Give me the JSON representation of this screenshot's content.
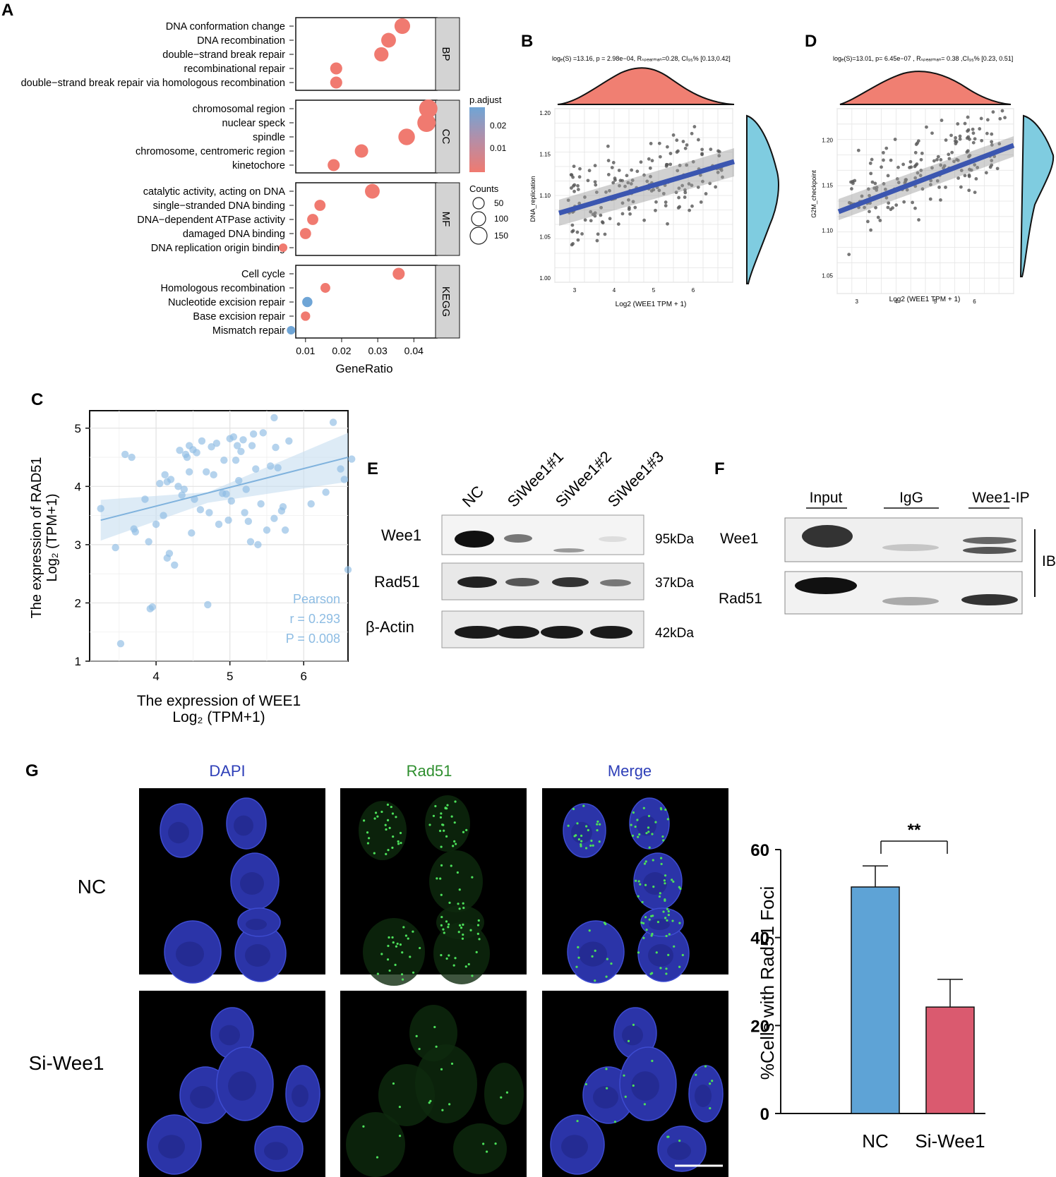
{
  "panel_labels": {
    "A": "A",
    "B": "B",
    "C": "C",
    "D": "D",
    "E": "E",
    "F": "F",
    "G": "G"
  },
  "colors": {
    "red": "#F07A70",
    "blue": "#6FA5D6",
    "facet_bg": "#D3D3D3",
    "scatter_line": "#3B56B0",
    "marginal_x": "#F07F72",
    "marginal_y": "#7FCCE0",
    "panel_c": "#8DBCE3",
    "bar_nc": "#5EA3D6",
    "bar_si": "#DA5A6F",
    "dapi": "#2E3FB8",
    "rad51": "#2F8F2F"
  },
  "panel_a": {
    "facets": [
      {
        "id": "BP",
        "terms": [
          {
            "label": "DNA conformation change",
            "x": 0.0368,
            "count": 120,
            "padj": "low"
          },
          {
            "label": "DNA recombination",
            "x": 0.033,
            "count": 110,
            "padj": "low"
          },
          {
            "label": "double−strand break repair",
            "x": 0.031,
            "count": 105,
            "padj": "low"
          },
          {
            "label": "recombinational repair",
            "x": 0.0185,
            "count": 80,
            "padj": "low"
          },
          {
            "label": "double−strand break repair via homologous recombination",
            "x": 0.0185,
            "count": 80,
            "padj": "low"
          }
        ]
      },
      {
        "id": "CC",
        "terms": [
          {
            "label": "chromosomal region",
            "x": 0.044,
            "count": 150,
            "padj": "low"
          },
          {
            "label": "nuclear speck",
            "x": 0.0435,
            "count": 150,
            "padj": "low"
          },
          {
            "label": "spindle",
            "x": 0.038,
            "count": 130,
            "padj": "low"
          },
          {
            "label": "chromosome, centromeric region",
            "x": 0.0255,
            "count": 95,
            "padj": "low"
          },
          {
            "label": "kinetochore",
            "x": 0.0178,
            "count": 80,
            "padj": "low"
          }
        ]
      },
      {
        "id": "MF",
        "terms": [
          {
            "label": "catalytic activity, acting on DNA",
            "x": 0.0285,
            "count": 110,
            "padj": "low"
          },
          {
            "label": "single−stranded DNA binding",
            "x": 0.014,
            "count": 70,
            "padj": "low"
          },
          {
            "label": "DNA−dependent ATPase activity",
            "x": 0.012,
            "count": 70,
            "padj": "low"
          },
          {
            "label": "damaged DNA binding",
            "x": 0.01,
            "count": 70,
            "padj": "low"
          },
          {
            "label": "DNA replication origin binding",
            "x": 0.0038,
            "count": 40,
            "padj": "low"
          }
        ]
      },
      {
        "id": "KEGG",
        "terms": [
          {
            "label": "Cell cycle",
            "x": 0.0358,
            "count": 80,
            "padj": "low"
          },
          {
            "label": "Homologous recombination",
            "x": 0.0155,
            "count": 55,
            "padj": "low"
          },
          {
            "label": "Nucleotide excision repair",
            "x": 0.0105,
            "count": 60,
            "padj": "high"
          },
          {
            "label": "Base excision repair",
            "x": 0.01,
            "count": 50,
            "padj": "low"
          },
          {
            "label": "Mismatch repair",
            "x": 0.006,
            "count": 40,
            "padj": "high"
          }
        ]
      }
    ],
    "x_ticks": [
      "0.01",
      "0.02",
      "0.03",
      "0.04"
    ],
    "xlabel": "GeneRatio",
    "legend": {
      "padj_title": "p.adjust",
      "padj_ticks": [
        "0.02",
        "0.01"
      ],
      "counts_title": "Counts",
      "counts": [
        "50",
        "100",
        "150"
      ]
    }
  },
  "panel_b": {
    "stats": "logₑ(S) =13.16, p = 2.98e−04, Rₛₚₑₐᵣₘₐₙ=0.28, CI₉₅% [0.13,0.42]",
    "ylabel": "DNA_replication",
    "xlabel": "Log2 (WEE1 TPM + 1)",
    "x_ticks": [
      "3",
      "4",
      "5",
      "6"
    ],
    "y_ticks": [
      "1.00",
      "1.05",
      "1.10",
      "1.15",
      "1.20"
    ]
  },
  "panel_d": {
    "stats": "logₑ(S)=13.01, p= 6.45e−07 , Rₛₚₑₐᵣₘₐₙ= 0.38 ,CI₉₅% [0.23, 0.51]",
    "ylabel": "G2M_checkpoint",
    "xlabel": "Log2 (WEE1 TPM + 1)",
    "x_ticks": [
      "3",
      "4",
      "5",
      "6"
    ],
    "y_ticks": [
      "1.05",
      "1.10",
      "1.15",
      "1.20"
    ]
  },
  "panel_c": {
    "ylabel1": "The expression of RAD51",
    "ylabel2": "Log₂ (TPM+1)",
    "xlabel1": "The expression of WEE1",
    "xlabel2": "Log₂ (TPM+1)",
    "annot": [
      "Pearson",
      "r = 0.293",
      "P = 0.008"
    ],
    "x_ticks": [
      "4",
      "5",
      "6"
    ],
    "y_ticks": [
      "1",
      "2",
      "3",
      "4",
      "5"
    ]
  },
  "panel_e": {
    "lanes": [
      "NC",
      "SiWee1#1",
      "SiWee1#2",
      "SiWee1#3"
    ],
    "rows": [
      {
        "label": "Wee1",
        "kda": "95kDa"
      },
      {
        "label": "Rad51",
        "kda": "37kDa"
      },
      {
        "label": "β-Actin",
        "kda": "42kDa"
      }
    ]
  },
  "panel_f": {
    "lanes": [
      "Input",
      "IgG",
      "Wee1-IP"
    ],
    "rows": [
      "Wee1",
      "Rad51"
    ],
    "ib": "IB"
  },
  "panel_g": {
    "col_headers": [
      "DAPI",
      "Rad51",
      "Merge"
    ],
    "row_labels": [
      "NC",
      "Si-Wee1"
    ]
  },
  "chart_data": [
    {
      "type": "bar",
      "categories": [
        "NC",
        "Si-Wee1"
      ],
      "values": [
        51.5,
        24.2
      ],
      "errors": [
        4.8,
        6.3
      ],
      "ylabel": "%Cells with Rad51 Foci",
      "ylim": [
        0,
        60
      ],
      "y_ticks": [
        "0",
        "20",
        "40",
        "60"
      ],
      "significance": "**"
    },
    {
      "type": "scatter",
      "title": "",
      "xlabel": "The expression of WEE1 Log2 (TPM+1)",
      "ylabel": "The expression of RAD51 Log2 (TPM+1)",
      "xlim": [
        3.1,
        6.6
      ],
      "ylim": [
        1,
        5.3
      ],
      "fit": {
        "x": [
          3.25,
          6.6
        ],
        "y": [
          3.42,
          4.5
        ]
      },
      "points": [
        [
          3.25,
          3.62
        ],
        [
          3.45,
          2.95
        ],
        [
          3.58,
          4.55
        ],
        [
          3.67,
          4.5
        ],
        [
          3.52,
          1.3
        ],
        [
          3.7,
          3.27
        ],
        [
          3.72,
          3.22
        ],
        [
          3.85,
          3.78
        ],
        [
          3.9,
          3.05
        ],
        [
          3.92,
          1.9
        ],
        [
          3.95,
          1.93
        ],
        [
          4.0,
          3.35
        ],
        [
          4.05,
          4.05
        ],
        [
          4.1,
          3.5
        ],
        [
          4.12,
          4.2
        ],
        [
          4.15,
          4.08
        ],
        [
          4.18,
          2.85
        ],
        [
          4.15,
          2.77
        ],
        [
          4.2,
          4.12
        ],
        [
          4.25,
          2.65
        ],
        [
          4.3,
          4.0
        ],
        [
          4.32,
          4.62
        ],
        [
          4.35,
          3.85
        ],
        [
          4.38,
          3.95
        ],
        [
          4.4,
          4.55
        ],
        [
          4.42,
          4.5
        ],
        [
          4.45,
          4.7
        ],
        [
          4.45,
          4.25
        ],
        [
          4.48,
          3.2
        ],
        [
          4.5,
          4.63
        ],
        [
          4.52,
          3.78
        ],
        [
          4.55,
          4.58
        ],
        [
          4.6,
          3.6
        ],
        [
          4.62,
          4.78
        ],
        [
          4.68,
          4.25
        ],
        [
          4.7,
          1.97
        ],
        [
          4.72,
          3.55
        ],
        [
          4.75,
          4.68
        ],
        [
          4.78,
          4.2
        ],
        [
          4.82,
          4.74
        ],
        [
          4.85,
          3.35
        ],
        [
          4.9,
          3.88
        ],
        [
          4.92,
          4.45
        ],
        [
          4.95,
          3.87
        ],
        [
          4.98,
          3.42
        ],
        [
          5.0,
          4.82
        ],
        [
          5.02,
          3.75
        ],
        [
          5.05,
          4.85
        ],
        [
          5.08,
          4.45
        ],
        [
          5.1,
          4.7
        ],
        [
          5.12,
          4.1
        ],
        [
          5.15,
          4.6
        ],
        [
          5.18,
          4.8
        ],
        [
          5.2,
          3.55
        ],
        [
          5.22,
          3.95
        ],
        [
          5.25,
          3.4
        ],
        [
          5.28,
          3.05
        ],
        [
          5.3,
          4.7
        ],
        [
          5.32,
          4.9
        ],
        [
          5.35,
          4.3
        ],
        [
          5.38,
          3.0
        ],
        [
          5.42,
          3.7
        ],
        [
          5.45,
          4.92
        ],
        [
          5.5,
          3.25
        ],
        [
          5.55,
          4.35
        ],
        [
          5.6,
          3.45
        ],
        [
          5.62,
          4.67
        ],
        [
          5.65,
          4.32
        ],
        [
          5.7,
          3.58
        ],
        [
          5.72,
          3.65
        ],
        [
          5.75,
          3.25
        ],
        [
          5.8,
          4.78
        ],
        [
          6.1,
          3.7
        ],
        [
          6.3,
          3.9
        ],
        [
          6.4,
          5.1
        ],
        [
          6.5,
          4.3
        ],
        [
          6.55,
          4.12
        ],
        [
          6.6,
          2.57
        ],
        [
          6.65,
          4.47
        ],
        [
          5.6,
          5.18
        ]
      ]
    }
  ]
}
